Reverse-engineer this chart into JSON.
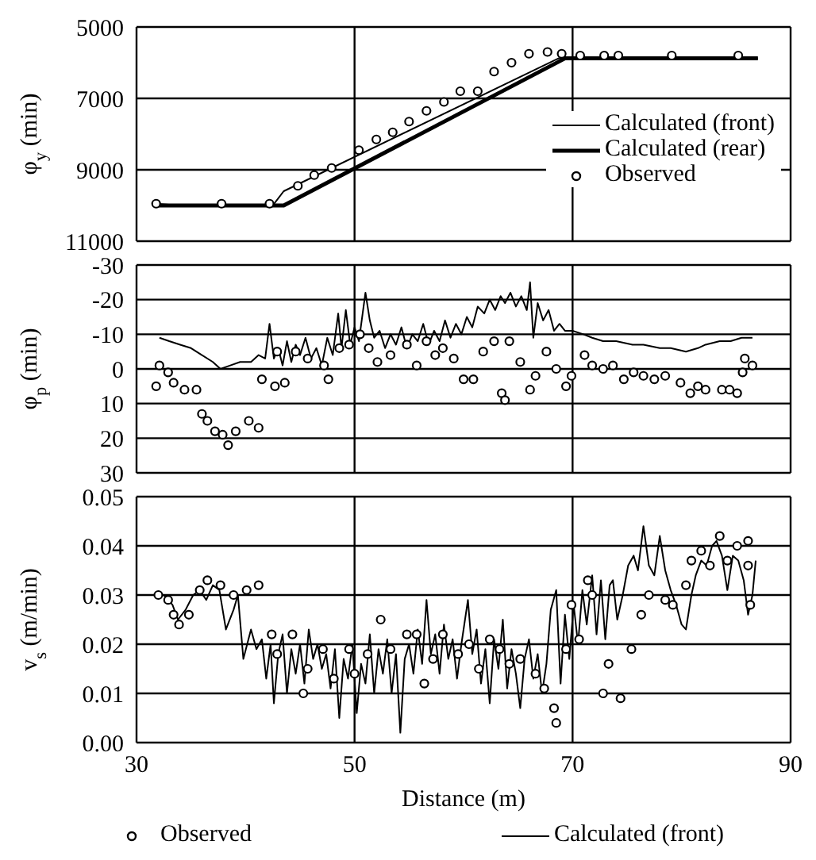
{
  "chart_data": [
    {
      "type": "line",
      "ylabel": "φ$_{y}$ (min)",
      "xlim": [
        30,
        90
      ],
      "xticks": [
        30,
        50,
        70,
        90
      ],
      "ylim": [
        11000,
        5000
      ],
      "yticks": [
        5000,
        7000,
        9000,
        11000
      ],
      "grid": true,
      "legend": "right",
      "tick_labels": "y",
      "series": [
        {
          "name": "Calculated (front)",
          "color": "#000000",
          "x": [
            31.7,
            34,
            42.5,
            43.5,
            68.7,
            87
          ],
          "values": [
            9950,
            10000,
            10000,
            9600,
            5880,
            5880
          ]
        },
        {
          "name": "Calculated (rear)",
          "color": "#000000",
          "x": [
            32,
            43.5,
            69.3,
            87
          ],
          "values": [
            10000,
            10000,
            5880,
            5880
          ]
        },
        {
          "name": "Observed",
          "type": "scatter",
          "marker": "circle",
          "color": "#000000",
          "x": [
            31.8,
            37.8,
            42.2,
            44.8,
            46.3,
            47.9,
            50.4,
            52.0,
            53.5,
            55.0,
            56.6,
            58.2,
            59.7,
            61.3,
            62.8,
            64.4,
            66.0,
            67.7,
            69.0,
            70.7,
            72.9,
            74.2,
            79.1,
            85.2
          ],
          "values": [
            9950,
            9950,
            9950,
            9450,
            9150,
            8950,
            8450,
            8150,
            7950,
            7650,
            7350,
            7100,
            6800,
            6800,
            6250,
            6000,
            5750,
            5700,
            5750,
            5800,
            5800,
            5800,
            5800,
            5800
          ]
        }
      ]
    },
    {
      "type": "line",
      "ylabel": "φ$_{p}$ (min)",
      "xlim": [
        30,
        90
      ],
      "xticks": [
        30,
        50,
        70,
        90
      ],
      "ylim": [
        30,
        -30
      ],
      "yticks": [
        -30,
        -20,
        -10,
        0,
        10,
        20,
        30
      ],
      "grid": true,
      "tick_labels": "y",
      "series": [
        {
          "color": "#000000",
          "x": [
            32.1,
            33,
            34,
            35,
            36,
            37,
            37.7,
            38.6,
            39.5,
            40.5,
            41.2,
            41.8,
            42.2,
            42.6,
            43,
            43.4,
            43.8,
            44.2,
            44.6,
            45,
            45.5,
            46,
            46.5,
            47,
            47.5,
            48,
            48.5,
            48.8,
            49.2,
            49.6,
            50,
            50.4,
            51,
            51.4,
            51.8,
            52.3,
            52.8,
            53.3,
            53.8,
            54.3,
            54.8,
            55.3,
            55.8,
            56.3,
            56.8,
            57.3,
            57.8,
            58.3,
            58.8,
            59.3,
            59.8,
            60.3,
            60.8,
            61.3,
            61.9,
            62.4,
            62.9,
            63.4,
            63.8,
            64.3,
            64.8,
            65.3,
            65.8,
            66.1,
            66.4,
            66.8,
            67.3,
            67.8,
            68.3,
            68.8,
            69.3,
            70,
            71,
            71.8,
            72.8,
            74,
            75.5,
            76.5,
            78,
            79,
            80.4,
            81.5,
            82.2,
            83.5,
            84.5,
            85.5,
            86.5
          ],
          "values": [
            -9,
            -8,
            -7,
            -6,
            -4,
            -2,
            0,
            -1,
            -2,
            -2,
            -4,
            -3,
            -13,
            -3,
            -6,
            -1,
            -8,
            -2,
            -7,
            -4,
            -9,
            -3,
            -6,
            -1,
            -9,
            -4,
            -16,
            -6,
            -17,
            -7,
            -12,
            -8,
            -22,
            -14,
            -9,
            -11,
            -6,
            -10,
            -7,
            -12,
            -6,
            -10,
            -8,
            -13,
            -7,
            -11,
            -8,
            -14,
            -9,
            -13,
            -10,
            -15,
            -12,
            -18,
            -16,
            -20,
            -17,
            -21,
            -19,
            -22,
            -18,
            -21,
            -17,
            -25,
            -9,
            -19,
            -14,
            -17,
            -11,
            -13,
            -11,
            -11,
            -10,
            -9,
            -8,
            -8,
            -7,
            -7,
            -6,
            -6,
            -5,
            -6,
            -7,
            -8,
            -8,
            -9,
            -9
          ]
        },
        {
          "type": "scatter",
          "marker": "circle",
          "color": "#000000",
          "x": [
            31.8,
            32.1,
            32.9,
            33.4,
            34.4,
            35.5,
            36,
            36.5,
            37.2,
            37.9,
            38.4,
            39.1,
            40.3,
            41.2,
            41.5,
            42.7,
            43.6,
            42.9,
            44.6,
            45.7,
            47.2,
            47.6,
            48.6,
            49.5,
            50.5,
            51.3,
            52.1,
            53.3,
            54.8,
            55.7,
            56.6,
            57.4,
            58.1,
            59.1,
            60,
            60.9,
            61.8,
            62.8,
            63.5,
            63.8,
            64.2,
            65.2,
            66.1,
            66.6,
            67.6,
            68.5,
            69.4,
            69.9,
            71.1,
            71.8,
            72.8,
            73.7,
            74.7,
            75.6,
            76.5,
            77.5,
            78.5,
            79.9,
            80.8,
            81.5,
            82.2,
            83.7,
            84.4,
            85.1,
            85.6,
            85.8,
            86.5
          ],
          "values": [
            5,
            -1,
            1,
            4,
            6,
            6,
            13,
            15,
            18,
            19,
            22,
            18,
            15,
            17,
            3,
            5,
            4,
            -5,
            -5,
            -3,
            -1,
            3,
            -6,
            -7,
            -10,
            -6,
            -2,
            -4,
            -7,
            -1,
            -8,
            -4,
            -6,
            -3,
            3,
            3,
            -5,
            -8,
            7,
            9,
            -8,
            -2,
            6,
            2,
            -5,
            0,
            5,
            2,
            -4,
            -1,
            0,
            -1,
            3,
            1,
            2,
            3,
            2,
            4,
            7,
            5,
            6,
            6,
            6,
            7,
            1,
            -3,
            -1
          ]
        }
      ]
    },
    {
      "type": "line",
      "ylabel": "v$_{s}$ (m/min)",
      "xlabel": "Distance (m)",
      "xlim": [
        30,
        90
      ],
      "xticks": [
        30,
        50,
        70,
        90
      ],
      "ylim": [
        0,
        0.05
      ],
      "yticks": [
        {
          "value": 0,
          "label": "0.00"
        },
        {
          "value": 0.01,
          "label": "0.01"
        },
        {
          "value": 0.02,
          "label": "0.02"
        },
        {
          "value": 0.03,
          "label": "0.03"
        },
        {
          "value": 0.04,
          "label": "0.04"
        },
        {
          "value": 0.05,
          "label": "0.05"
        }
      ],
      "grid": true,
      "legend": "bottom",
      "series": [
        {
          "name": "Observed",
          "type": "scatter",
          "marker": "circle",
          "color": "#000000",
          "x": [
            32,
            32.9,
            33.4,
            33.9,
            34.8,
            35.8,
            36.5,
            37.7,
            38.9,
            40.1,
            41.2,
            42.4,
            42.9,
            44.3,
            45.3,
            45.7,
            47.1,
            48.1,
            49.5,
            50,
            51.2,
            52.4,
            53.3,
            54.8,
            55.7,
            56.4,
            57.2,
            58.1,
            59.5,
            60.5,
            61.4,
            62.4,
            63.3,
            64.2,
            65.2,
            66.6,
            67.4,
            68.3,
            68.5,
            69.4,
            69.9,
            70.6,
            71.4,
            71.8,
            72.8,
            73.3,
            74.4,
            75.4,
            76.3,
            77,
            78.5,
            79.2,
            80.4,
            80.9,
            81.8,
            82.6,
            83.5,
            84.2,
            85.1,
            86.1,
            86.1,
            86.3
          ],
          "values": [
            0.03,
            0.029,
            0.026,
            0.024,
            0.026,
            0.031,
            0.033,
            0.032,
            0.03,
            0.031,
            0.032,
            0.022,
            0.018,
            0.022,
            0.01,
            0.015,
            0.019,
            0.013,
            0.019,
            0.014,
            0.018,
            0.025,
            0.019,
            0.022,
            0.022,
            0.012,
            0.017,
            0.022,
            0.018,
            0.02,
            0.015,
            0.021,
            0.019,
            0.016,
            0.017,
            0.014,
            0.011,
            0.007,
            0.004,
            0.019,
            0.028,
            0.021,
            0.033,
            0.03,
            0.01,
            0.016,
            0.009,
            0.019,
            0.026,
            0.03,
            0.029,
            0.028,
            0.032,
            0.037,
            0.039,
            0.036,
            0.042,
            0.037,
            0.04,
            0.041,
            0.036,
            0.028
          ]
        },
        {
          "name": "Calculated (front)",
          "color": "#000000",
          "x": [
            31.5,
            32.5,
            33.3,
            33.8,
            34.5,
            35.2,
            35.8,
            36.4,
            37,
            37.6,
            38.2,
            38.9,
            39.3,
            39.8,
            40.5,
            41,
            41.5,
            41.9,
            42.3,
            42.6,
            43,
            43.4,
            43.8,
            44.2,
            44.6,
            45,
            45.4,
            45.8,
            46.2,
            46.6,
            47,
            47.4,
            47.8,
            48.2,
            48.6,
            49,
            49.4,
            49.8,
            50.2,
            50.6,
            51,
            51.4,
            51.8,
            52.2,
            52.6,
            53,
            53.4,
            53.8,
            54.2,
            54.6,
            55,
            55.4,
            55.8,
            56.2,
            56.6,
            57,
            57.4,
            57.8,
            58.2,
            58.6,
            59,
            59.4,
            59.8,
            60.4,
            60.8,
            61.2,
            61.6,
            62,
            62.4,
            62.8,
            63.2,
            63.6,
            64,
            64.4,
            64.8,
            65.2,
            65.6,
            66,
            66.4,
            66.8,
            67.2,
            67.6,
            68,
            68.5,
            68.9,
            69.3,
            69.7,
            70.1,
            70.5,
            70.9,
            71.3,
            71.8,
            72.2,
            72.6,
            73,
            73.4,
            73.7,
            74.1,
            74.6,
            75.1,
            75.6,
            76,
            76.5,
            77,
            77.5,
            78,
            78.5,
            79,
            79.5,
            80,
            80.4,
            80.9,
            81.3,
            81.8,
            82.3,
            82.8,
            83.2,
            83.7,
            84.2,
            84.7,
            85.2,
            85.7,
            86.1,
            86.5,
            86.8
          ],
          "values": [
            0.03,
            0.03,
            0.028,
            0.025,
            0.027,
            0.03,
            0.031,
            0.029,
            0.032,
            0.031,
            0.023,
            0.027,
            0.03,
            0.017,
            0.023,
            0.019,
            0.021,
            0.013,
            0.02,
            0.008,
            0.018,
            0.022,
            0.01,
            0.019,
            0.014,
            0.02,
            0.012,
            0.023,
            0.017,
            0.02,
            0.015,
            0.018,
            0.011,
            0.019,
            0.005,
            0.017,
            0.013,
            0.02,
            0.006,
            0.016,
            0.012,
            0.022,
            0.01,
            0.019,
            0.014,
            0.021,
            0.01,
            0.018,
            0.002,
            0.017,
            0.02,
            0.014,
            0.023,
            0.016,
            0.029,
            0.018,
            0.022,
            0.014,
            0.024,
            0.017,
            0.021,
            0.013,
            0.02,
            0.029,
            0.018,
            0.023,
            0.012,
            0.019,
            0.008,
            0.021,
            0.015,
            0.025,
            0.011,
            0.019,
            0.014,
            0.007,
            0.017,
            0.021,
            0.013,
            0.018,
            0.01,
            0.016,
            0.027,
            0.031,
            0.012,
            0.026,
            0.017,
            0.028,
            0.02,
            0.031,
            0.024,
            0.034,
            0.022,
            0.033,
            0.021,
            0.032,
            0.033,
            0.025,
            0.03,
            0.036,
            0.038,
            0.035,
            0.044,
            0.036,
            0.034,
            0.042,
            0.035,
            0.031,
            0.028,
            0.024,
            0.023,
            0.03,
            0.034,
            0.037,
            0.036,
            0.04,
            0.041,
            0.038,
            0.031,
            0.038,
            0.037,
            0.033,
            0.026,
            0.03,
            0.037
          ]
        }
      ]
    }
  ]
}
